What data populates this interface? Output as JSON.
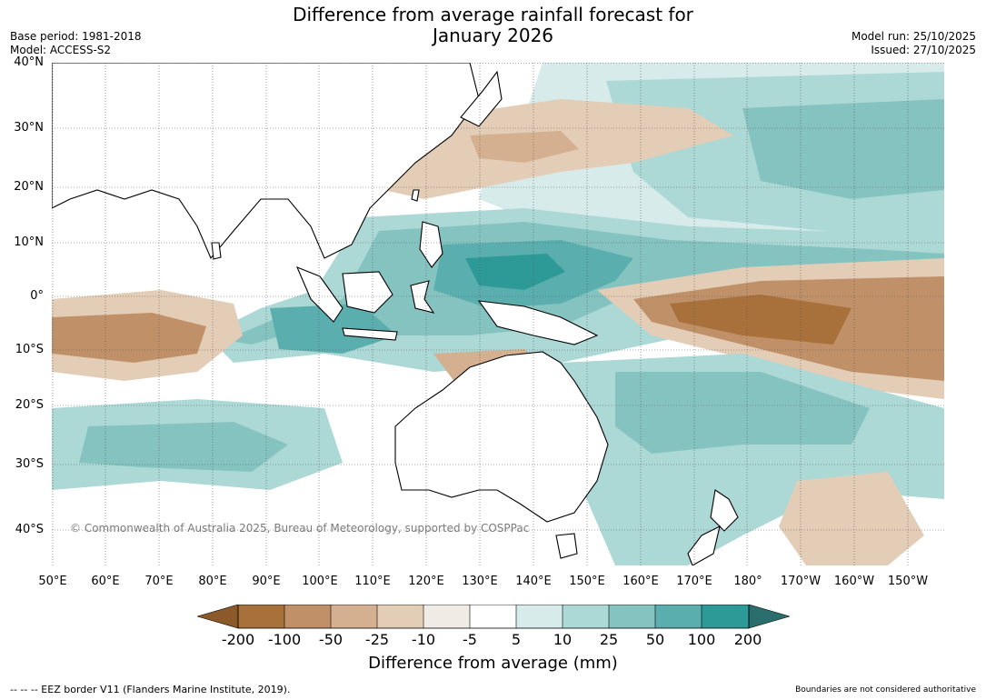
{
  "title": {
    "line1": "Difference from average rainfall forecast for",
    "line2": "January 2026"
  },
  "meta": {
    "base_period": "Base period: 1981-2018",
    "model": "Model: ACCESS-S2",
    "model_run": "Model run: 25/10/2025",
    "issued": "Issued: 27/10/2025"
  },
  "map": {
    "lat_labels": [
      "40°N",
      "30°N",
      "20°N",
      "10°N",
      "0°",
      "10°S",
      "20°S",
      "30°S",
      "40°S"
    ],
    "lon_labels": [
      "50°E",
      "60°E",
      "70°E",
      "80°E",
      "90°E",
      "100°E",
      "110°E",
      "120°E",
      "130°E",
      "140°E",
      "150°E",
      "160°E",
      "170°E",
      "180°",
      "170°W",
      "160°W",
      "150°W"
    ],
    "copyright": "© Commonwealth of Australia 2025, Bureau of Meteorology, supported by COSPPac",
    "colors": {
      "dry_extreme": "#8c5a2a",
      "dry_200": "#a8703a",
      "dry_100": "#c09068",
      "dry_50": "#d4b090",
      "dry_25": "#e3cdb7",
      "dry_10": "#f1ebe6",
      "neutral": "#ffffff",
      "wet_10": "#d6ebea",
      "wet_25": "#acd8d6",
      "wet_50": "#85c3c1",
      "wet_100": "#5baeae",
      "wet_200": "#2d9a98",
      "wet_extreme": "#2a6e6e",
      "land_outline": "#000000",
      "border": "#7f7f7f",
      "grid": "#555555"
    }
  },
  "colorbar": {
    "ticks": [
      "-200",
      "-100",
      "-50",
      "-25",
      "-10",
      "-5",
      "5",
      "10",
      "25",
      "50",
      "100",
      "200"
    ],
    "title": "Difference from average (mm)"
  },
  "footer": {
    "eez_note": "--  --  -- EEZ border V11 (Flanders Marine Institute, 2019).",
    "boundary_note": "Boundaries are not considered authoritative"
  }
}
